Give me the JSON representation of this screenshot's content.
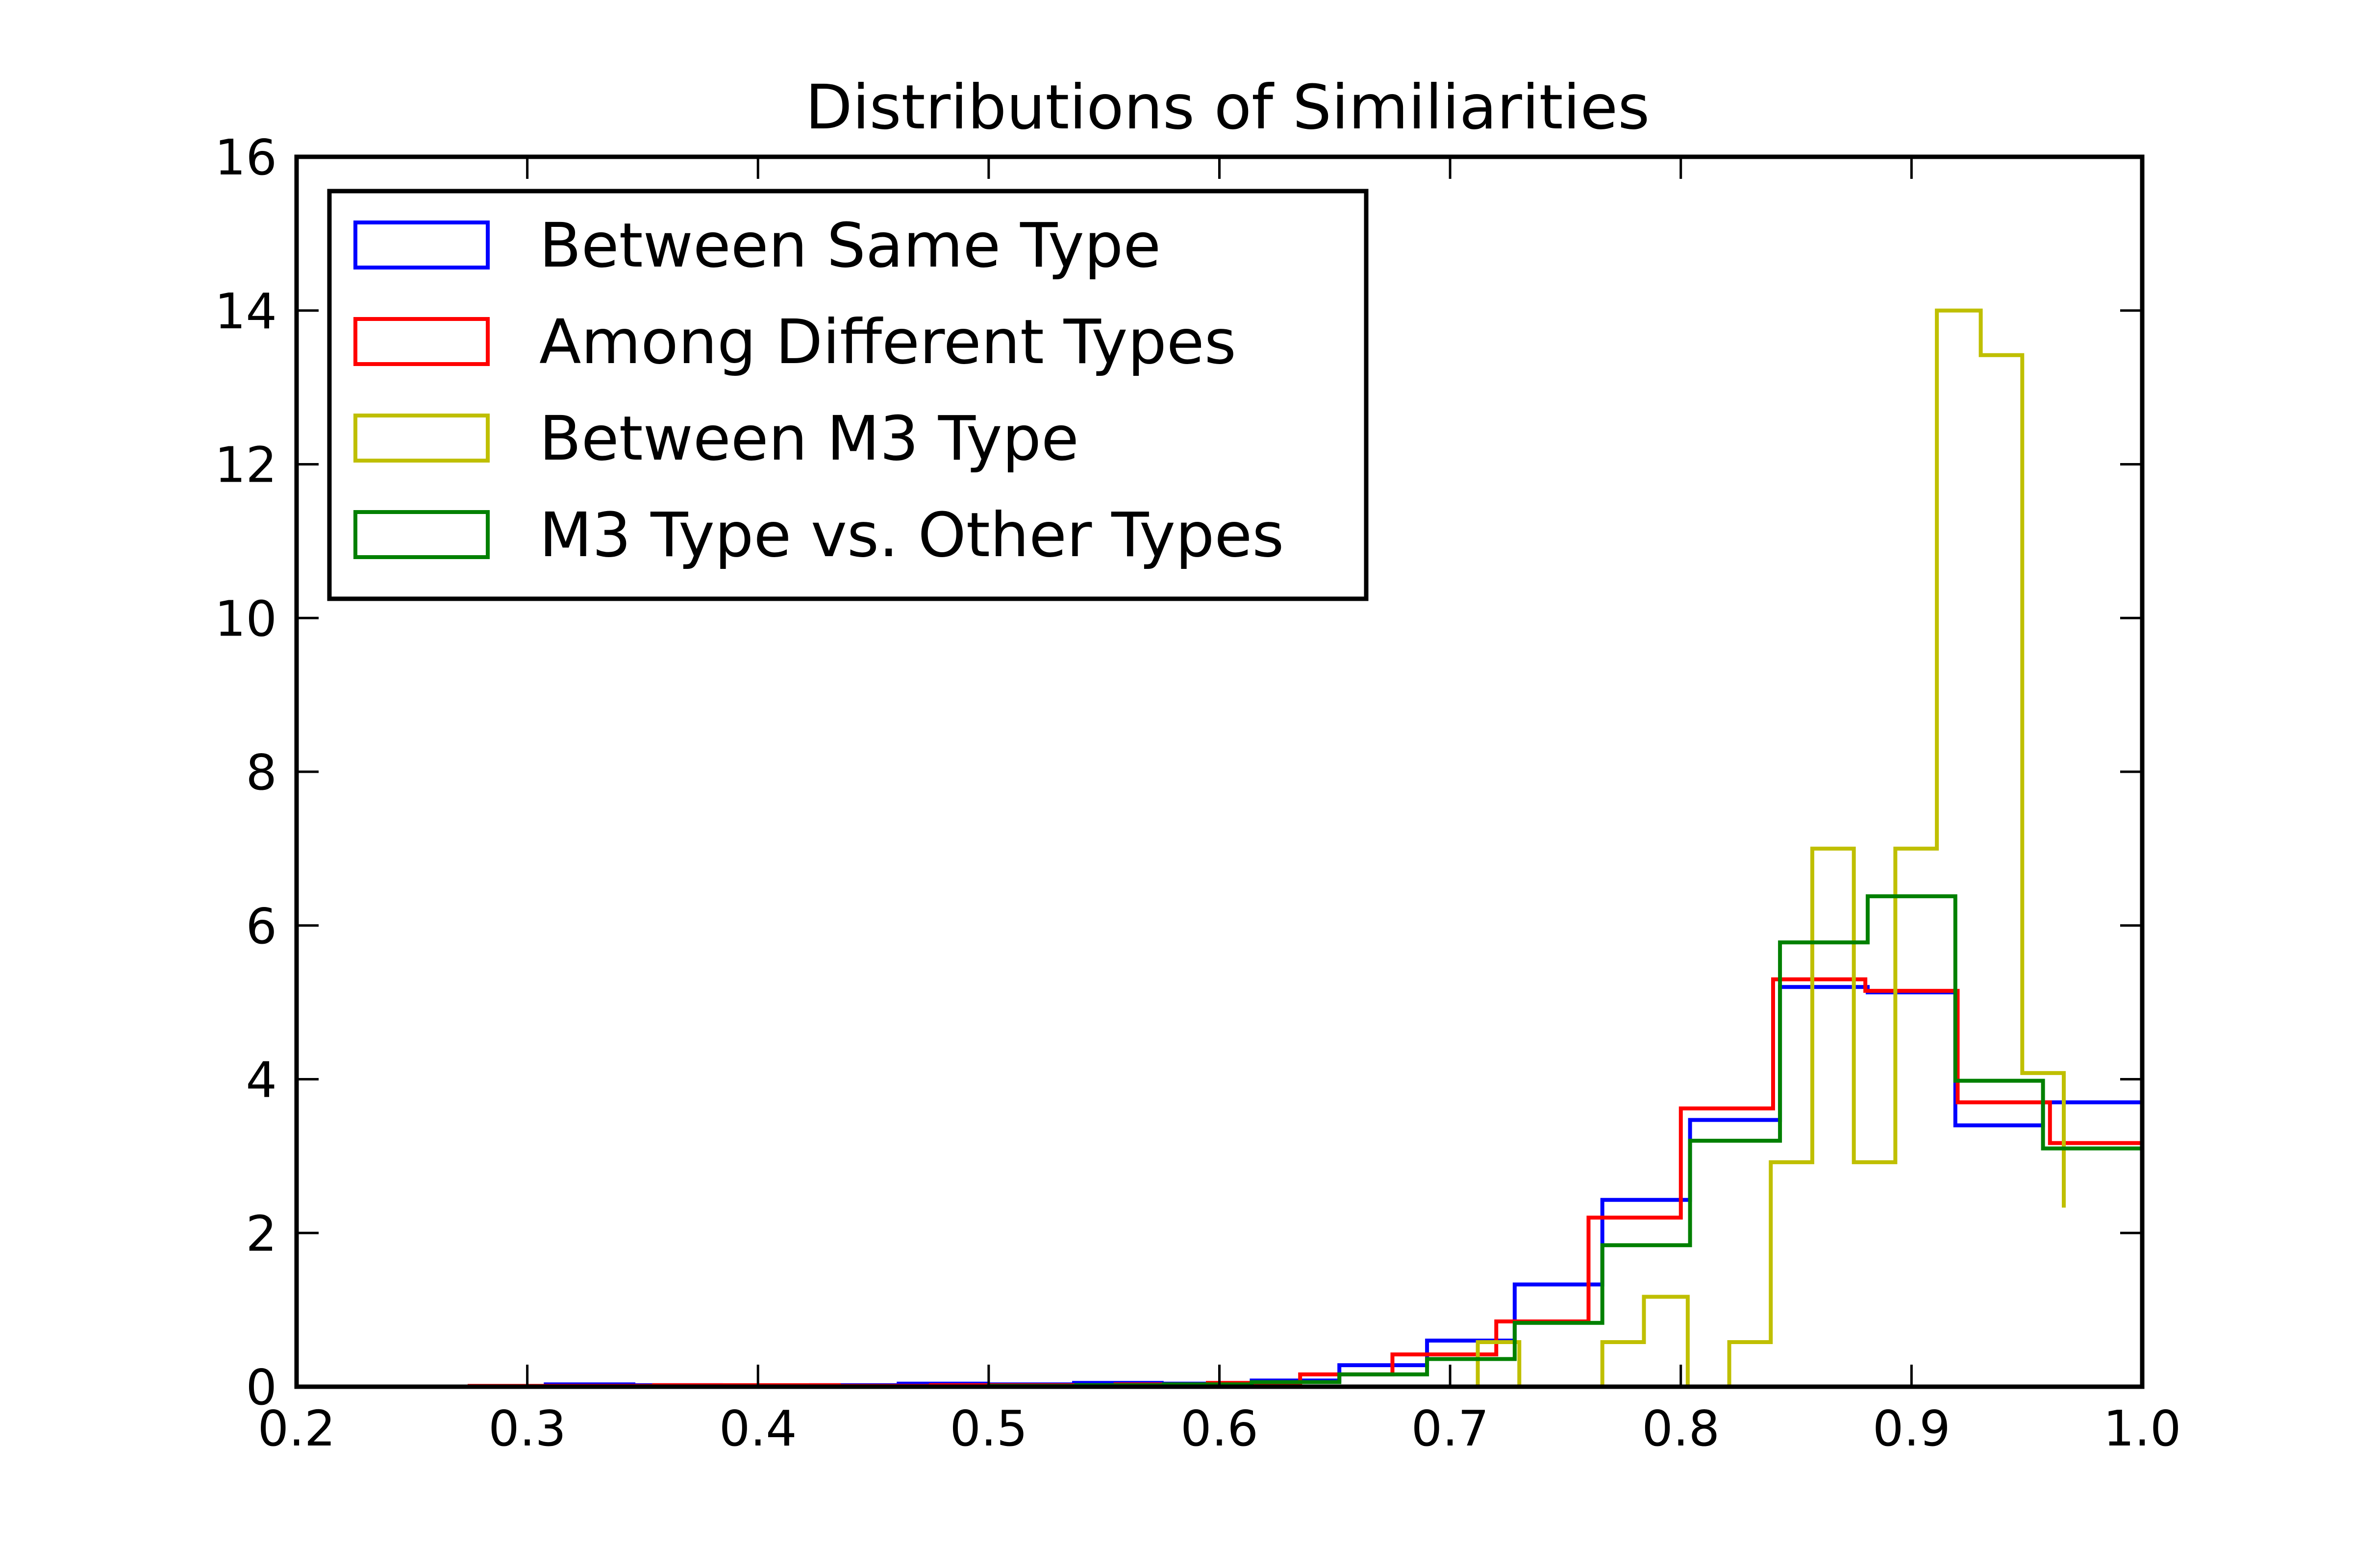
{
  "chart_data": {
    "type": "histogram",
    "title": "Distributions of Similiarities",
    "xlabel": "",
    "ylabel": "",
    "xlim": [
      0.2,
      1.0
    ],
    "ylim": [
      0,
      16
    ],
    "x_ticks": [
      0.2,
      0.3,
      0.4,
      0.5,
      0.6,
      0.7,
      0.8,
      0.9,
      1.0
    ],
    "x_tick_labels": [
      "0.2",
      "0.3",
      "0.4",
      "0.5",
      "0.6",
      "0.7",
      "0.8",
      "0.9",
      "1.0"
    ],
    "y_ticks": [
      0,
      2,
      4,
      6,
      8,
      10,
      12,
      14,
      16
    ],
    "y_tick_labels": [
      "0",
      "2",
      "4",
      "6",
      "8",
      "10",
      "12",
      "14",
      "16"
    ],
    "grid": false,
    "legend_position": "top-left",
    "series": [
      {
        "name": "Between Same Type",
        "color": "#0000ff",
        "x": [
          0.27,
          0.308,
          0.346,
          0.384,
          0.423,
          0.461,
          0.499,
          0.537,
          0.575,
          0.614,
          0.652,
          0.69,
          0.728,
          0.766,
          0.804,
          0.843,
          0.881,
          0.919,
          0.957,
          1.0
        ],
        "y": [
          0.0,
          0.03,
          0.02,
          0.01,
          0.02,
          0.04,
          0.03,
          0.05,
          0.04,
          0.08,
          0.28,
          0.6,
          1.33,
          2.43,
          3.47,
          5.2,
          5.13,
          3.4,
          3.7
        ]
      },
      {
        "name": "Among Different Types",
        "color": "#ff0000",
        "x": [
          0.275,
          0.315,
          0.355,
          0.395,
          0.435,
          0.475,
          0.515,
          0.555,
          0.595,
          0.635,
          0.675,
          0.72,
          0.76,
          0.8,
          0.84,
          0.88,
          0.92,
          0.96,
          1.0
        ],
        "y": [
          0.01,
          0.01,
          0.02,
          0.02,
          0.01,
          0.02,
          0.02,
          0.03,
          0.05,
          0.16,
          0.42,
          0.85,
          2.2,
          3.62,
          5.3,
          5.15,
          3.7,
          3.17
        ]
      },
      {
        "name": "Between M3 Type",
        "color": "#bfbf00",
        "x": [
          0.712,
          0.73,
          0.748,
          0.766,
          0.784,
          0.803,
          0.821,
          0.839,
          0.857,
          0.875,
          0.893,
          0.911,
          0.93,
          0.948,
          0.966
        ],
        "y": [
          0.58,
          0.0,
          0.0,
          0.58,
          1.17,
          0.0,
          0.58,
          2.92,
          7.0,
          2.92,
          7.0,
          14.0,
          13.42,
          4.08,
          2.33
        ]
      },
      {
        "name": "M3 Type vs. Other Types",
        "color": "#008000",
        "x": [
          0.5,
          0.538,
          0.576,
          0.614,
          0.652,
          0.69,
          0.728,
          0.766,
          0.804,
          0.843,
          0.881,
          0.919,
          0.957,
          1.0
        ],
        "y": [
          0.01,
          0.02,
          0.03,
          0.06,
          0.16,
          0.36,
          0.83,
          1.84,
          3.2,
          5.78,
          6.38,
          3.98,
          3.1
        ]
      }
    ]
  }
}
